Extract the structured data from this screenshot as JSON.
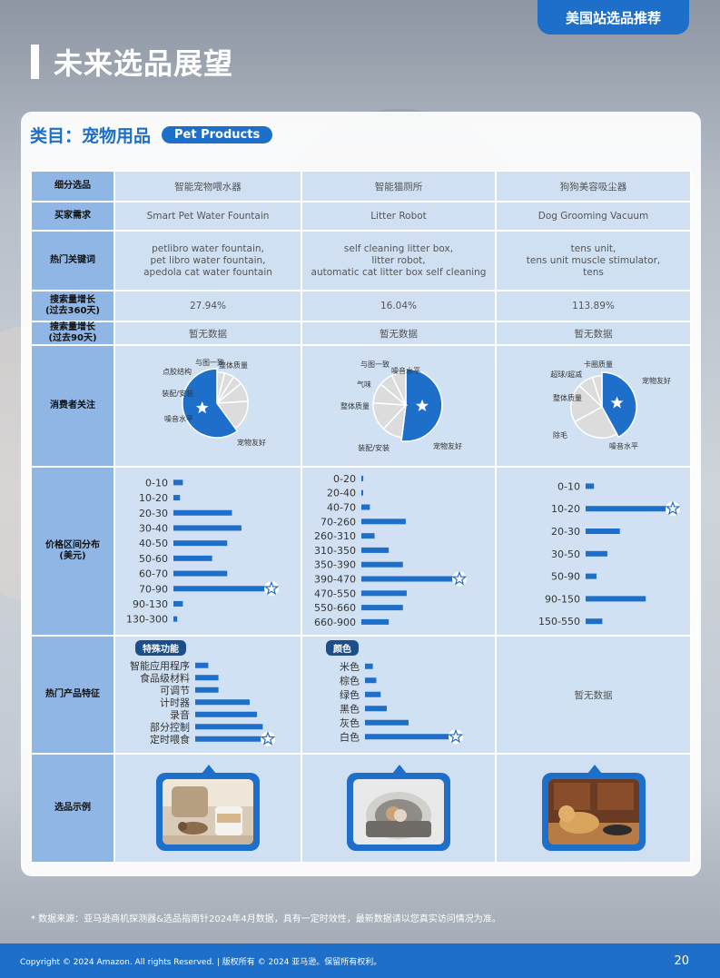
{
  "top_tag": "美国站选品推荐",
  "page_title": "未来选品展望",
  "category": {
    "cn": "类目：宠物用品",
    "en": "Pet Products"
  },
  "row_labels": {
    "subcat": "细分选品",
    "buyer_need": "买家需求",
    "keywords": "热门关键词",
    "growth360": [
      "搜索量增长",
      "(过去360天)"
    ],
    "growth90": [
      "搜索量增长",
      "(过去90天)"
    ],
    "focus": "消费者关注",
    "price": [
      "价格区间分布",
      "(美元)"
    ],
    "features": "热门产品特征",
    "example": "选品示例"
  },
  "columns": [
    {
      "name": "智能宠物喂水器",
      "need": "Smart Pet Water Fountain",
      "keywords": [
        "petlibro water fountain,",
        "pet libro water fountain,",
        "apedola cat water fountain"
      ],
      "growth360": "27.94%",
      "growth90": "暂无数据",
      "pie_labels": [
        "点胶结构",
        "与图一致",
        "整体质量",
        "装配/安装",
        "噪音水平",
        "宠物友好"
      ],
      "price": {
        "cats": [
          "0-10",
          "10-20",
          "20-30",
          "30-40",
          "40-50",
          "50-60",
          "60-70",
          "70-90",
          "90-130",
          "130-300"
        ],
        "values": [
          10,
          7,
          62,
          72,
          57,
          41,
          57,
          100,
          10,
          4
        ],
        "star_index": 7
      },
      "feature_tag": "特殊功能",
      "features": {
        "cats": [
          "智能应用程序",
          "食品级材料",
          "可调节",
          "计时器",
          "录音",
          "部分控制",
          "定时喂食"
        ],
        "values": [
          18,
          32,
          32,
          75,
          85,
          93,
          95
        ],
        "star_index": 6
      }
    },
    {
      "name": "智能猫厕所",
      "need": "Litter Robot",
      "keywords": [
        "self cleaning litter box,",
        "litter robot,",
        "automatic cat litter box self cleaning"
      ],
      "growth360": "16.04%",
      "growth90": "暂无数据",
      "pie_labels": [
        "与图一致",
        "噪音水平",
        "气味",
        "整体质量",
        "装配/安装",
        "宠物友好"
      ],
      "price": {
        "cats": [
          "0-20",
          "20-40",
          "40-70",
          "70-260",
          "260-310",
          "310-350",
          "350-390",
          "390-470",
          "470-550",
          "550-660",
          "660-900"
        ],
        "values": [
          2,
          1,
          9,
          47,
          14,
          29,
          44,
          100,
          48,
          44,
          29
        ],
        "star_index": 7
      },
      "feature_tag": "颜色",
      "features": {
        "cats": [
          "米色",
          "棕色",
          "绿色",
          "黑色",
          "灰色",
          "白色"
        ],
        "values": [
          9,
          13,
          18,
          25,
          50,
          100
        ],
        "star_index": 5
      }
    },
    {
      "name": "狗狗美容吸尘器",
      "need": "Dog Grooming Vacuum",
      "keywords": [
        "tens unit,",
        "tens unit muscle stimulator,",
        "tens"
      ],
      "growth360": "113.89%",
      "growth90": "暂无数据",
      "pie_labels": [
        "卡圈质量",
        "超球/超减",
        "宠物友好",
        "整体质量",
        "除毛",
        "噪音水平"
      ],
      "price": {
        "cats": [
          "0-10",
          "10-20",
          "20-30",
          "30-50",
          "50-90",
          "90-150",
          "150-550"
        ],
        "values": [
          10,
          100,
          41,
          26,
          13,
          72,
          20
        ],
        "star_index": 1
      },
      "features_text": "暂无数据"
    }
  ],
  "source": "* 数据来源：亚马逊商机探测器&选品指南针2024年4月数据，具有一定时效性，最新数据请以您真实访问情况为准。",
  "footer": {
    "copyright": "Copyright © 2024 Amazon. All rights Reserved. | 版权所有 © 2024 亚马逊。保留所有权利。",
    "page": "20"
  },
  "colors": {
    "brand": "#1e6fc9",
    "label_bg": "#8fb6e4",
    "cell_bg": "#c4d9f0",
    "pie_light": "#dcdcdc"
  }
}
